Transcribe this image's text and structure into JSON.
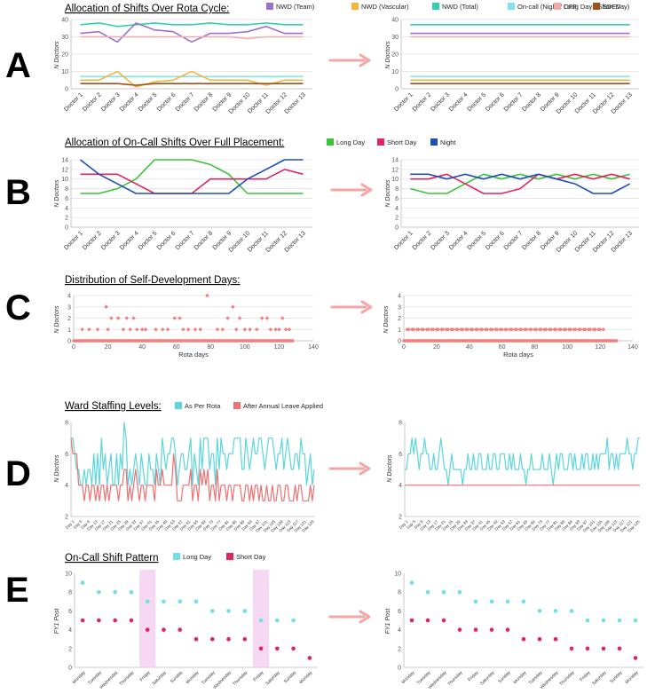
{
  "colors": {
    "nwd_team": "#a070c8",
    "nwd_vascular": "#f2b640",
    "nwd_total": "#2ecfb5",
    "oncall": "#7fe3e9",
    "off": "#f4a9a9",
    "sdev": "#a0521e",
    "long_day": "#3cc23c",
    "short_day": "#e0245e",
    "night": "#1d4fb5",
    "sd_points": "#f08080",
    "as_per_rota": "#5ad6dc",
    "after_leave": "#f07070",
    "cyan_dot": "#6fe0e6",
    "magenta_dot": "#e0245e",
    "arrow": "#f4a6a6",
    "highlight": "#f3c8ef"
  },
  "panels": {
    "A": {
      "letter": "A",
      "title": "Allocation of Shifts Over Rota Cycle:",
      "ylabel": "N Doctors"
    },
    "B": {
      "letter": "B",
      "title": "Allocation of On-Call Shifts Over Full Placement:",
      "ylabel": "N Doctors"
    },
    "C": {
      "letter": "C",
      "title": "Distribution of Self-Development Days:",
      "ylabel": "N Doctors",
      "xlabel": "Rota days"
    },
    "D": {
      "letter": "D",
      "title": "Ward Staffing Levels:",
      "ylabel": "N Doctors"
    },
    "E": {
      "letter": "E",
      "title": "On-Call Shift Pattern",
      "ylabel": "FY1 Post"
    }
  },
  "chart_data": [
    {
      "id": "A",
      "type": "line",
      "categories": [
        "Doctor 1",
        "Doctor 2",
        "Doctor 3",
        "Doctor 4",
        "Doctor 5",
        "Doctor 6",
        "Doctor 7",
        "Doctor 8",
        "Doctor 9",
        "Doctor 10",
        "Doctor 11",
        "Doctor 12",
        "Doctor 13"
      ],
      "ylim": [
        0,
        40
      ],
      "yticks": [
        0,
        10,
        20,
        30,
        40
      ],
      "legend": [
        {
          "key": "nwd_team",
          "label": "NWD (Team)"
        },
        {
          "key": "nwd_vascular",
          "label": "NWD (Vascular)"
        },
        {
          "key": "nwd_total",
          "label": "NWD (Total)"
        },
        {
          "key": "oncall",
          "label": "On-call (Night / Long Day / Short Day)"
        },
        {
          "key": "off",
          "label": "OFF"
        },
        {
          "key": "sdev",
          "label": "SDEV"
        }
      ],
      "before": [
        {
          "key": "nwd_total",
          "values": [
            37,
            38,
            36,
            37,
            38,
            37,
            37,
            38,
            37,
            37,
            38,
            37,
            37
          ]
        },
        {
          "key": "nwd_team",
          "values": [
            32,
            33,
            27,
            38,
            34,
            33,
            27,
            32,
            32,
            33,
            36,
            32,
            32
          ]
        },
        {
          "key": "off",
          "values": [
            30,
            30,
            30,
            30,
            30,
            30,
            30,
            30,
            30,
            29,
            30,
            30,
            30
          ]
        },
        {
          "key": "oncall",
          "values": [
            7,
            7,
            7,
            7,
            7,
            7,
            7,
            7,
            7,
            7,
            7,
            7,
            7
          ]
        },
        {
          "key": "nwd_vascular",
          "values": [
            5,
            5,
            10,
            1,
            4,
            5,
            10,
            5,
            5,
            5,
            2,
            5,
            5
          ]
        },
        {
          "key": "sdev",
          "values": [
            3,
            3,
            3,
            2,
            3,
            3,
            3,
            3,
            3,
            3,
            3,
            3,
            3
          ]
        }
      ],
      "after": [
        {
          "key": "nwd_total",
          "values": [
            37,
            37,
            37,
            37,
            37,
            37,
            37,
            37,
            37,
            37,
            37,
            37,
            37
          ]
        },
        {
          "key": "nwd_team",
          "values": [
            32,
            32,
            32,
            32,
            32,
            32,
            32,
            32,
            32,
            32,
            32,
            32,
            32
          ]
        },
        {
          "key": "off",
          "values": [
            30,
            30,
            30,
            30,
            30,
            30,
            30,
            30,
            30,
            30,
            30,
            30,
            30
          ]
        },
        {
          "key": "oncall",
          "values": [
            7,
            7,
            7,
            7,
            7,
            7,
            7,
            7,
            7,
            7,
            7,
            7,
            7
          ]
        },
        {
          "key": "nwd_vascular",
          "values": [
            5,
            5,
            5,
            5,
            5,
            5,
            5,
            5,
            5,
            5,
            5,
            5,
            5
          ]
        },
        {
          "key": "sdev",
          "values": [
            3,
            3,
            3,
            3,
            3,
            3,
            3,
            3,
            3,
            3,
            3,
            3,
            3
          ]
        }
      ]
    },
    {
      "id": "B",
      "type": "line",
      "categories": [
        "Doctor 1",
        "Doctor 2",
        "Doctor 3",
        "Doctor 4",
        "Doctor 5",
        "Doctor 6",
        "Doctor 7",
        "Doctor 8",
        "Doctor 9",
        "Doctor 10",
        "Doctor 11",
        "Doctor 12",
        "Doctor 13"
      ],
      "ylim": [
        0,
        14
      ],
      "yticks": [
        0,
        2,
        4,
        6,
        8,
        10,
        12,
        14
      ],
      "legend": [
        {
          "key": "long_day",
          "label": "Long Day"
        },
        {
          "key": "short_day",
          "label": "Short Day"
        },
        {
          "key": "night",
          "label": "Night"
        }
      ],
      "before": [
        {
          "key": "long_day",
          "values": [
            7,
            7,
            8,
            10,
            14,
            14,
            14,
            13,
            11,
            7,
            7,
            7,
            7
          ]
        },
        {
          "key": "short_day",
          "values": [
            11,
            11,
            11,
            9,
            7,
            7,
            7,
            10,
            10,
            10,
            10,
            12,
            11
          ]
        },
        {
          "key": "night",
          "values": [
            14,
            11,
            9,
            7,
            7,
            7,
            7,
            7,
            7,
            10,
            12,
            14,
            14
          ]
        }
      ],
      "after": [
        {
          "key": "long_day",
          "values": [
            8,
            7,
            7,
            9,
            11,
            10,
            11,
            10,
            11,
            10,
            11,
            10,
            11
          ]
        },
        {
          "key": "short_day",
          "values": [
            10,
            10,
            11,
            9,
            7,
            7,
            8,
            11,
            10,
            11,
            10,
            11,
            10
          ]
        },
        {
          "key": "night",
          "values": [
            11,
            11,
            10,
            11,
            10,
            11,
            10,
            11,
            10,
            9,
            7,
            7,
            9
          ]
        }
      ]
    },
    {
      "id": "C",
      "type": "scatter",
      "xlim": [
        0,
        140
      ],
      "ylim": [
        0,
        4
      ],
      "xticks": [
        0,
        20,
        40,
        60,
        80,
        100,
        120,
        140
      ],
      "yticks": [
        0,
        1,
        2,
        3,
        4
      ],
      "before_points": [
        [
          5,
          1
        ],
        [
          9,
          1
        ],
        [
          14,
          1
        ],
        [
          19,
          3
        ],
        [
          20,
          1
        ],
        [
          22,
          2
        ],
        [
          26,
          2
        ],
        [
          29,
          1
        ],
        [
          31,
          2
        ],
        [
          33,
          1
        ],
        [
          35,
          2
        ],
        [
          37,
          1
        ],
        [
          40,
          1
        ],
        [
          42,
          1
        ],
        [
          48,
          1
        ],
        [
          52,
          1
        ],
        [
          55,
          1
        ],
        [
          59,
          2
        ],
        [
          62,
          2
        ],
        [
          64,
          1
        ],
        [
          67,
          1
        ],
        [
          71,
          1
        ],
        [
          74,
          1
        ],
        [
          78,
          4
        ],
        [
          84,
          1
        ],
        [
          87,
          1
        ],
        [
          90,
          2
        ],
        [
          93,
          3
        ],
        [
          95,
          1
        ],
        [
          97,
          2
        ],
        [
          100,
          1
        ],
        [
          103,
          1
        ],
        [
          107,
          1
        ],
        [
          110,
          2
        ],
        [
          113,
          2
        ],
        [
          115,
          1
        ],
        [
          118,
          1
        ],
        [
          120,
          1
        ],
        [
          122,
          2
        ],
        [
          124,
          1
        ],
        [
          126,
          1
        ]
      ],
      "before_zero": [
        0,
        128
      ],
      "after_points_range": [
        2,
        122
      ],
      "after_zero": [
        0,
        130
      ]
    },
    {
      "id": "D",
      "type": "line",
      "ylim": [
        2,
        8
      ],
      "yticks": [
        2,
        4,
        6,
        8
      ],
      "day_labels": [
        "Day 1",
        "Day 5",
        "Day 9",
        "Day 13",
        "Day 17",
        "Day 21",
        "Day 25",
        "Day 29",
        "Day 33",
        "Day 37",
        "Day 41",
        "Day 45",
        "Day 49",
        "Day 53",
        "Day 57",
        "Day 61",
        "Day 65",
        "Day 69",
        "Day 73",
        "Day 77",
        "Day 81",
        "Day 85",
        "Day 89",
        "Day 93",
        "Day 97",
        "Day 101",
        "Day 105",
        "Day 109",
        "Day 113",
        "Day 117",
        "Day 121",
        "Day 125"
      ],
      "legend": [
        {
          "key": "as_per_rota",
          "label": "As Per Rota"
        },
        {
          "key": "after_leave",
          "label": "After Annual Leave Applied"
        }
      ],
      "before": [
        {
          "key": "as_per_rota",
          "values": [
            7,
            7,
            6,
            5,
            5,
            4,
            4,
            5,
            4,
            5,
            5,
            4,
            6,
            4,
            6,
            4,
            7,
            5,
            6,
            4,
            5,
            6,
            4,
            4,
            6,
            4,
            6,
            5,
            8,
            7,
            4,
            5,
            4,
            5,
            6,
            5,
            4,
            6,
            5,
            4,
            4,
            6,
            5,
            5,
            4,
            6,
            5,
            4,
            7,
            6,
            5,
            6,
            6,
            7,
            7,
            6,
            4,
            5,
            6,
            6,
            5,
            5,
            6,
            7,
            4,
            6,
            5,
            4,
            7,
            5,
            7,
            7,
            7,
            5,
            6,
            6,
            4,
            7,
            5,
            7,
            6,
            6,
            5,
            6,
            6,
            6,
            7,
            7,
            7,
            7,
            5,
            5,
            7,
            6,
            5,
            6,
            7,
            6,
            6,
            7,
            7,
            6,
            5,
            6,
            7,
            7,
            7,
            6,
            5,
            6,
            6,
            7,
            5,
            6,
            7,
            6,
            5,
            5,
            6,
            6,
            5,
            7,
            6,
            6,
            4,
            5,
            6,
            4,
            5
          ]
        },
        {
          "key": "after_leave",
          "values": [
            7,
            6,
            6,
            6,
            4,
            4,
            4,
            3,
            4,
            4,
            3,
            4,
            4,
            3,
            4,
            3,
            4,
            4,
            3,
            4,
            3,
            4,
            4,
            4,
            4,
            3,
            4,
            4,
            5,
            5,
            3,
            4,
            3,
            4,
            5,
            4,
            3,
            4,
            4,
            3,
            4,
            4,
            4,
            4,
            3,
            5,
            4,
            4,
            5,
            4,
            4,
            4,
            4,
            4,
            6,
            5,
            3,
            3,
            3,
            4,
            4,
            4,
            4,
            5,
            3,
            4,
            4,
            3,
            5,
            4,
            5,
            4,
            5,
            3,
            4,
            4,
            3,
            5,
            3,
            4,
            4,
            4,
            3,
            4,
            4,
            3,
            4,
            4,
            4,
            4,
            3,
            3,
            4,
            4,
            3,
            4,
            3,
            4,
            4,
            3,
            4,
            3,
            3,
            4,
            3,
            3,
            4,
            3,
            3,
            4,
            4,
            3,
            3,
            4,
            4,
            3,
            3,
            3,
            4,
            3,
            4,
            4,
            3,
            3,
            3,
            3,
            4,
            3,
            4
          ]
        }
      ],
      "after": [
        {
          "key": "as_per_rota",
          "values": [
            5,
            5,
            6,
            6,
            7,
            6,
            7,
            6,
            5,
            6,
            6,
            7,
            6,
            6,
            5,
            5,
            6,
            5,
            5,
            6,
            7,
            6,
            5,
            5,
            4,
            5,
            6,
            5,
            5,
            5,
            5,
            5,
            4,
            5,
            5,
            6,
            5,
            5,
            6,
            5,
            5,
            6,
            6,
            5,
            5,
            5,
            6,
            5,
            5,
            6,
            6,
            5,
            5,
            6,
            6,
            6,
            5,
            5,
            6,
            5,
            6,
            5,
            5,
            5,
            6,
            5,
            5,
            4,
            5,
            5,
            6,
            5,
            5,
            5,
            5,
            5,
            6,
            5,
            5,
            5,
            6,
            5,
            4,
            5,
            6,
            5,
            6,
            6,
            5,
            5,
            5,
            6,
            6,
            5,
            6,
            5,
            5,
            5,
            6,
            5,
            6,
            6,
            5,
            5,
            6,
            5,
            6,
            5,
            6,
            6,
            6,
            6,
            7,
            5,
            6,
            6,
            5,
            6,
            5,
            6,
            6,
            6,
            6,
            7,
            6,
            6,
            5,
            6,
            6,
            7,
            7
          ]
        },
        {
          "key": "after_leave",
          "values": [
            4,
            4
          ]
        }
      ]
    },
    {
      "id": "E",
      "type": "scatter",
      "ylim": [
        0,
        10
      ],
      "yticks": [
        0,
        2,
        4,
        6,
        8,
        10
      ],
      "day_labels": [
        "Monday",
        "Tuesday",
        "Wednesday",
        "Thursday",
        "Friday",
        "Saturday",
        "Sunday",
        "Monday",
        "Tuesday",
        "Wednesday",
        "Thursday",
        "Friday",
        "Saturday",
        "Sunday",
        "Monday"
      ],
      "legend": [
        {
          "key": "cyan_dot",
          "label": "Long Day"
        },
        {
          "key": "magenta_dot",
          "label": "Short Day"
        }
      ],
      "highlight_days": [
        4,
        11
      ],
      "before_long": [
        9,
        8,
        8,
        8,
        7,
        7,
        7,
        7,
        6,
        6,
        6,
        5,
        5,
        5,
        null
      ],
      "before_short": [
        5,
        5,
        5,
        5,
        4,
        4,
        4,
        3,
        3,
        3,
        3,
        2,
        2,
        2,
        1
      ],
      "after_long": [
        9,
        8,
        8,
        8,
        7,
        7,
        7,
        7,
        6,
        6,
        6,
        5,
        5,
        5,
        5
      ],
      "after_short": [
        5,
        5,
        5,
        4,
        4,
        4,
        4,
        3,
        3,
        3,
        2,
        2,
        2,
        2,
        1
      ]
    }
  ]
}
